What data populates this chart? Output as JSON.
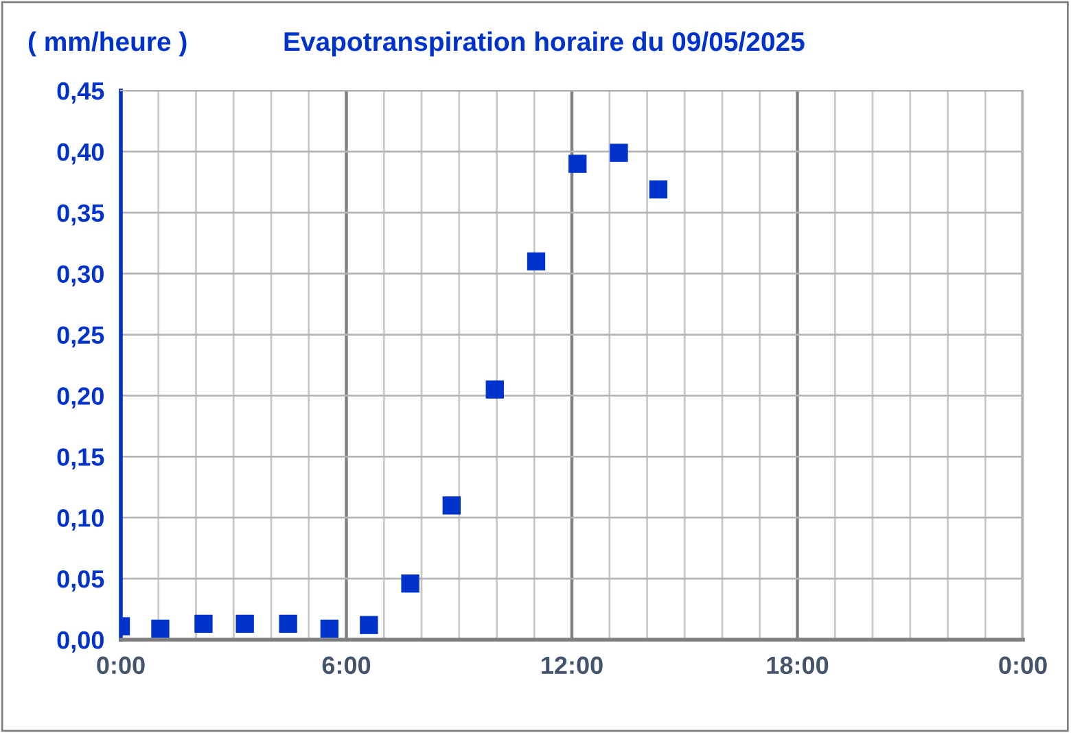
{
  "chart_data": {
    "type": "scatter",
    "title": "Evapotranspiration horaire du 09/05/2025",
    "ylabel": "( mm/heure )",
    "x": [
      0,
      1.05,
      2.2,
      3.3,
      4.45,
      5.55,
      6.6,
      7.7,
      8.8,
      9.95,
      11.05,
      12.15,
      13.25,
      14.3
    ],
    "series": [
      {
        "color": "#0033cc",
        "values": [
          0.011,
          0.009,
          0.013,
          0.013,
          0.013,
          0.009,
          0.012,
          0.046,
          0.11,
          0.205,
          0.31,
          0.39,
          0.399,
          0.369
        ]
      }
    ],
    "marker": "square",
    "grid": true,
    "xlim": [
      0,
      24
    ],
    "xticks": [
      {
        "value": 0,
        "label": "0:00"
      },
      {
        "value": 1,
        "label": null
      },
      {
        "value": 2,
        "label": null
      },
      {
        "value": 3,
        "label": null
      },
      {
        "value": 4,
        "label": null
      },
      {
        "value": 5,
        "label": null
      },
      {
        "value": 6,
        "label": "6:00"
      },
      {
        "value": 7,
        "label": null
      },
      {
        "value": 8,
        "label": null
      },
      {
        "value": 9,
        "label": null
      },
      {
        "value": 10,
        "label": null
      },
      {
        "value": 11,
        "label": null
      },
      {
        "value": 12,
        "label": "12:00"
      },
      {
        "value": 13,
        "label": null
      },
      {
        "value": 14,
        "label": null
      },
      {
        "value": 15,
        "label": null
      },
      {
        "value": 16,
        "label": null
      },
      {
        "value": 17,
        "label": null
      },
      {
        "value": 18,
        "label": "18:00"
      },
      {
        "value": 19,
        "label": null
      },
      {
        "value": 20,
        "label": null
      },
      {
        "value": 21,
        "label": null
      },
      {
        "value": 22,
        "label": null
      },
      {
        "value": 23,
        "label": null
      },
      {
        "value": 24,
        "label": "0:00"
      }
    ],
    "ylim": [
      0,
      0.45
    ],
    "yticks": [
      {
        "value": 0,
        "label": "0,00"
      },
      {
        "value": 0.05,
        "label": "0,05"
      },
      {
        "value": 0.1,
        "label": "0,10"
      },
      {
        "value": 0.15,
        "label": "0,15"
      },
      {
        "value": 0.2,
        "label": "0,20"
      },
      {
        "value": 0.25,
        "label": "0,25"
      },
      {
        "value": 0.3,
        "label": "0,30"
      },
      {
        "value": 0.35,
        "label": "0,35"
      },
      {
        "value": 0.4,
        "label": "0,40"
      },
      {
        "value": 0.45,
        "label": "0,45"
      }
    ]
  }
}
